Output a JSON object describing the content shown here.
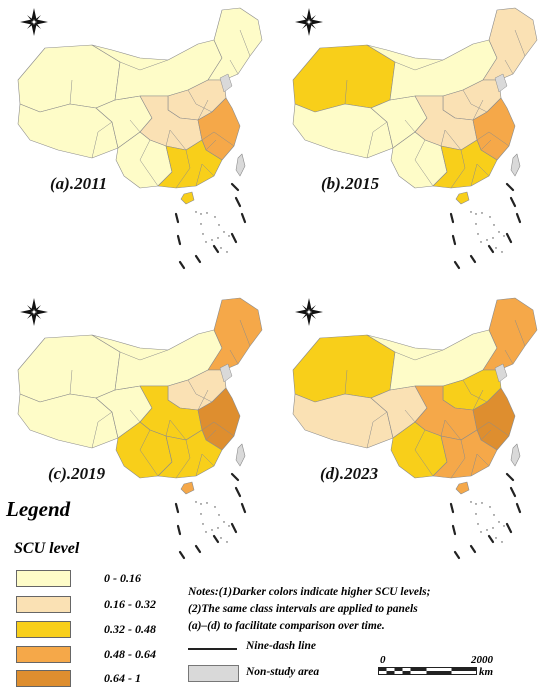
{
  "panels": [
    {
      "label": "(a).2011",
      "colors": {
        "nw": "#fefcc8",
        "tibet": "#fefcc8",
        "qinghai": "#fefcc8",
        "inner": "#fefcc8",
        "ne": "#fefcc8",
        "north": "#fae1b4",
        "central": "#fae1b4",
        "sw": "#fefcc8",
        "east": "#f5a849",
        "south": "#f8cf1a",
        "hainan": "#f8cf1a",
        "taiwan": "#d9d9d9"
      }
    },
    {
      "label": "(b).2015",
      "colors": {
        "nw": "#f8cf1a",
        "tibet": "#fefcc8",
        "qinghai": "#fefcc8",
        "inner": "#fefcc8",
        "ne": "#fae1b4",
        "north": "#fae1b4",
        "central": "#fae1b4",
        "sw": "#fefcc8",
        "east": "#f5a849",
        "south": "#f8cf1a",
        "hainan": "#f8cf1a",
        "taiwan": "#d9d9d9"
      }
    },
    {
      "label": "(c).2019",
      "colors": {
        "nw": "#fefcc8",
        "tibet": "#fefcc8",
        "qinghai": "#fefcc8",
        "inner": "#fefcc8",
        "ne": "#f5a849",
        "north": "#fae1b4",
        "central": "#f8cf1a",
        "sw": "#f8cf1a",
        "east": "#de8e2f",
        "south": "#f8cf1a",
        "hainan": "#f5a849",
        "taiwan": "#d9d9d9"
      }
    },
    {
      "label": "(d).2023",
      "colors": {
        "nw": "#f8cf1a",
        "tibet": "#fae1b4",
        "qinghai": "#fae1b4",
        "inner": "#fefcc8",
        "ne": "#f5a849",
        "north": "#f8cf1a",
        "central": "#f5a849",
        "sw": "#f8cf1a",
        "east": "#de8e2f",
        "south": "#f5a849",
        "hainan": "#f5a849",
        "taiwan": "#d9d9d9"
      }
    }
  ],
  "legend": {
    "title": "Legend",
    "scu_title": "SCU level",
    "classes": [
      {
        "label": "0 - 0.16",
        "color": "#fefcc8"
      },
      {
        "label": "0.16 - 0.32",
        "color": "#fae1b4"
      },
      {
        "label": "0.32 - 0.48",
        "color": "#f8cf1a"
      },
      {
        "label": "0.48 - 0.64",
        "color": "#f5a849"
      },
      {
        "label": "0.64 - 1",
        "color": "#de8e2f"
      }
    ],
    "notes": [
      "Notes:(1)Darker colors indicate higher SCU levels;",
      "(2)The same class intervals are applied to panels",
      "(a)–(d) to facilitate comparison over time."
    ],
    "nine_dash_label": "Nine-dash line",
    "non_study_label": "Non-study area",
    "scale_zero": "0",
    "scale_max": "2000",
    "scale_unit": "km",
    "non_study_color": "#d9d9d9"
  }
}
